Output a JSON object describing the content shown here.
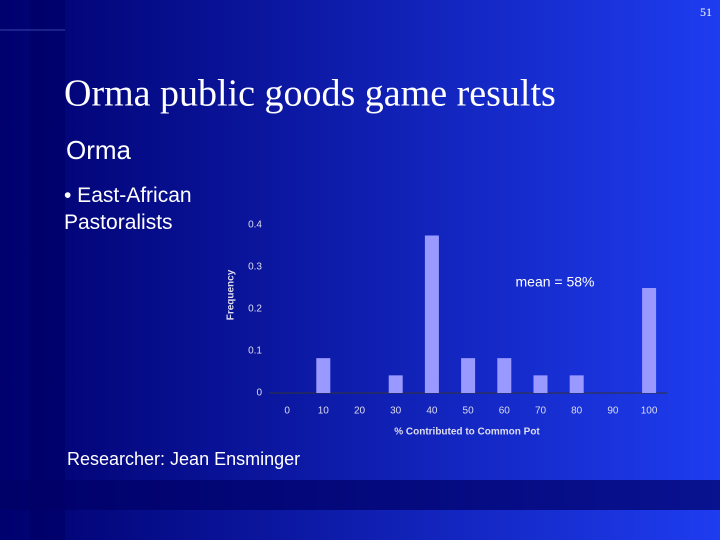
{
  "page_number": "51",
  "title": "Orma public goods game results",
  "subtitle": "Orma",
  "bullet": "• East-African Pastoralists",
  "footer": "Researcher: Jean Ensminger",
  "chart_data": {
    "type": "bar",
    "categories": [
      "0",
      "10",
      "20",
      "30",
      "40",
      "50",
      "60",
      "70",
      "80",
      "90",
      "100"
    ],
    "values": [
      0,
      0.083,
      0,
      0.042,
      0.375,
      0.083,
      0.083,
      0.042,
      0.042,
      0,
      0.25
    ],
    "color": "#9999ff",
    "ylim": [
      0,
      0.4
    ],
    "yticks": [
      0,
      0.1,
      0.2,
      0.3,
      0.4
    ],
    "xlabel": "% Contributed to Common Pot",
    "ylabel": "Frequency",
    "annotation": "mean = 58%"
  }
}
